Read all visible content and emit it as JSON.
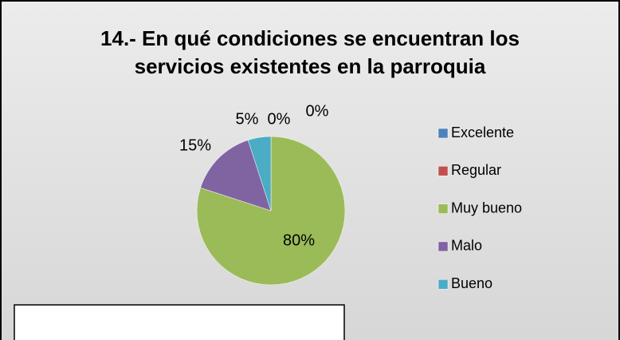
{
  "chart_data": {
    "type": "pie",
    "title": "14.- En qué condiciones se encuentran los servicios existentes en la parroquia",
    "categories": [
      "Excelente",
      "Regular",
      "Muy bueno",
      "Malo",
      "Bueno"
    ],
    "values": [
      0,
      0,
      80,
      15,
      5
    ],
    "value_labels": [
      "0%",
      "0%",
      "80%",
      "15%",
      "5%"
    ],
    "colors": [
      "#4f81bd",
      "#c0504d",
      "#9bbb59",
      "#8064a2",
      "#4bacc6"
    ],
    "legend": "right"
  }
}
